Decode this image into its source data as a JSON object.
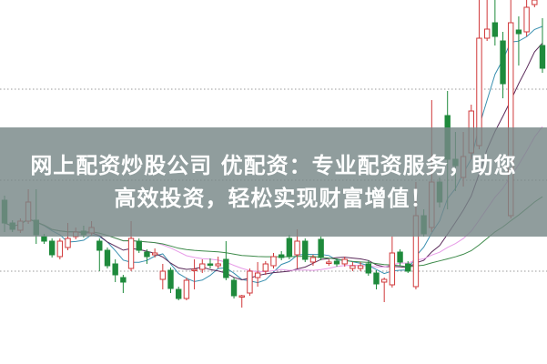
{
  "banner": {
    "line1": "网上配资炒股公司 优配资：专业配资服务，助您",
    "line2": "高效投资，轻松实现财富增值！"
  },
  "chart_data": {
    "type": "candlestick",
    "title": "",
    "xlabel": "",
    "ylabel": "",
    "ylim": [
      0,
      400
    ],
    "grid": true,
    "gridlines": [
      302,
      202,
      102
    ],
    "colors": {
      "up": "#d0393b",
      "down": "#1f8a3c",
      "ma_short": "#3a90b0",
      "ma_mid": "#5a2a5a",
      "ma_long": "#e79be7",
      "ma_longest": "#3d8a4a",
      "grid": "#999999"
    },
    "moving_averages": [
      5,
      10,
      20,
      40
    ],
    "candles_ohlc": [
      [
        180,
        185,
        145,
        155
      ],
      [
        155,
        158,
        145,
        148
      ],
      [
        147,
        160,
        144,
        157
      ],
      [
        157,
        192,
        154,
        178
      ],
      [
        158,
        192,
        132,
        142
      ],
      [
        140,
        143,
        132,
        135
      ],
      [
        135,
        138,
        117,
        120
      ],
      [
        118,
        138,
        115,
        135
      ],
      [
        128,
        155,
        125,
        138
      ],
      [
        140,
        150,
        137,
        145
      ],
      [
        146,
        152,
        139,
        142
      ],
      [
        144,
        157,
        141,
        150
      ],
      [
        135,
        138,
        102,
        125
      ],
      [
        125,
        128,
        105,
        108
      ],
      [
        110,
        115,
        90,
        98
      ],
      [
        95,
        98,
        78,
        90
      ],
      [
        105,
        157,
        102,
        138
      ],
      [
        135,
        138,
        122,
        125
      ],
      [
        123,
        126,
        110,
        118
      ],
      [
        120,
        127,
        117,
        122
      ],
      [
        93,
        110,
        82,
        102
      ],
      [
        103,
        106,
        78,
        83
      ],
      [
        82,
        85,
        70,
        72
      ],
      [
        72,
        95,
        70,
        92
      ],
      [
        103,
        115,
        82,
        104
      ],
      [
        104,
        115,
        100,
        110
      ],
      [
        110,
        116,
        105,
        109
      ],
      [
        108,
        118,
        105,
        110
      ],
      [
        115,
        135,
        92,
        95
      ],
      [
        92,
        95,
        72,
        75
      ],
      [
        74,
        76,
        62,
        75
      ],
      [
        78,
        105,
        75,
        102
      ],
      [
        95,
        112,
        85,
        100
      ],
      [
        102,
        113,
        98,
        110
      ],
      [
        108,
        122,
        105,
        118
      ],
      [
        120,
        124,
        114,
        117
      ],
      [
        138,
        142,
        115,
        118
      ],
      [
        120,
        148,
        105,
        135
      ],
      [
        135,
        138,
        112,
        115
      ],
      [
        112,
        120,
        108,
        117
      ],
      [
        137,
        140,
        114,
        117
      ],
      [
        111,
        115,
        108,
        112
      ],
      [
        113,
        116,
        107,
        110
      ],
      [
        110,
        118,
        107,
        115
      ],
      [
        105,
        112,
        102,
        108
      ],
      [
        105,
        112,
        102,
        108
      ],
      [
        110,
        114,
        97,
        100
      ],
      [
        100,
        103,
        82,
        88
      ],
      [
        90,
        95,
        68,
        93
      ],
      [
        87,
        140,
        84,
        122
      ],
      [
        123,
        126,
        108,
        112
      ],
      [
        110,
        113,
        100,
        102
      ],
      [
        85,
        200,
        82,
        163
      ],
      [
        163,
        170,
        140,
        143
      ],
      [
        150,
        290,
        145,
        200
      ],
      [
        200,
        205,
        172,
        178
      ],
      [
        273,
        300,
        170,
        225
      ],
      [
        225,
        255,
        190,
        218
      ],
      [
        205,
        255,
        195,
        228
      ],
      [
        232,
        285,
        225,
        278
      ],
      [
        240,
        400,
        236,
        358
      ],
      [
        358,
        400,
        355,
        368
      ],
      [
        375,
        400,
        350,
        360
      ],
      [
        355,
        365,
        292,
        308
      ],
      [
        163,
        400,
        160,
        375
      ],
      [
        367,
        382,
        328,
        363
      ],
      [
        365,
        400,
        360,
        392
      ],
      [
        395,
        400,
        392,
        400
      ],
      [
        350,
        380,
        320,
        325
      ]
    ]
  }
}
